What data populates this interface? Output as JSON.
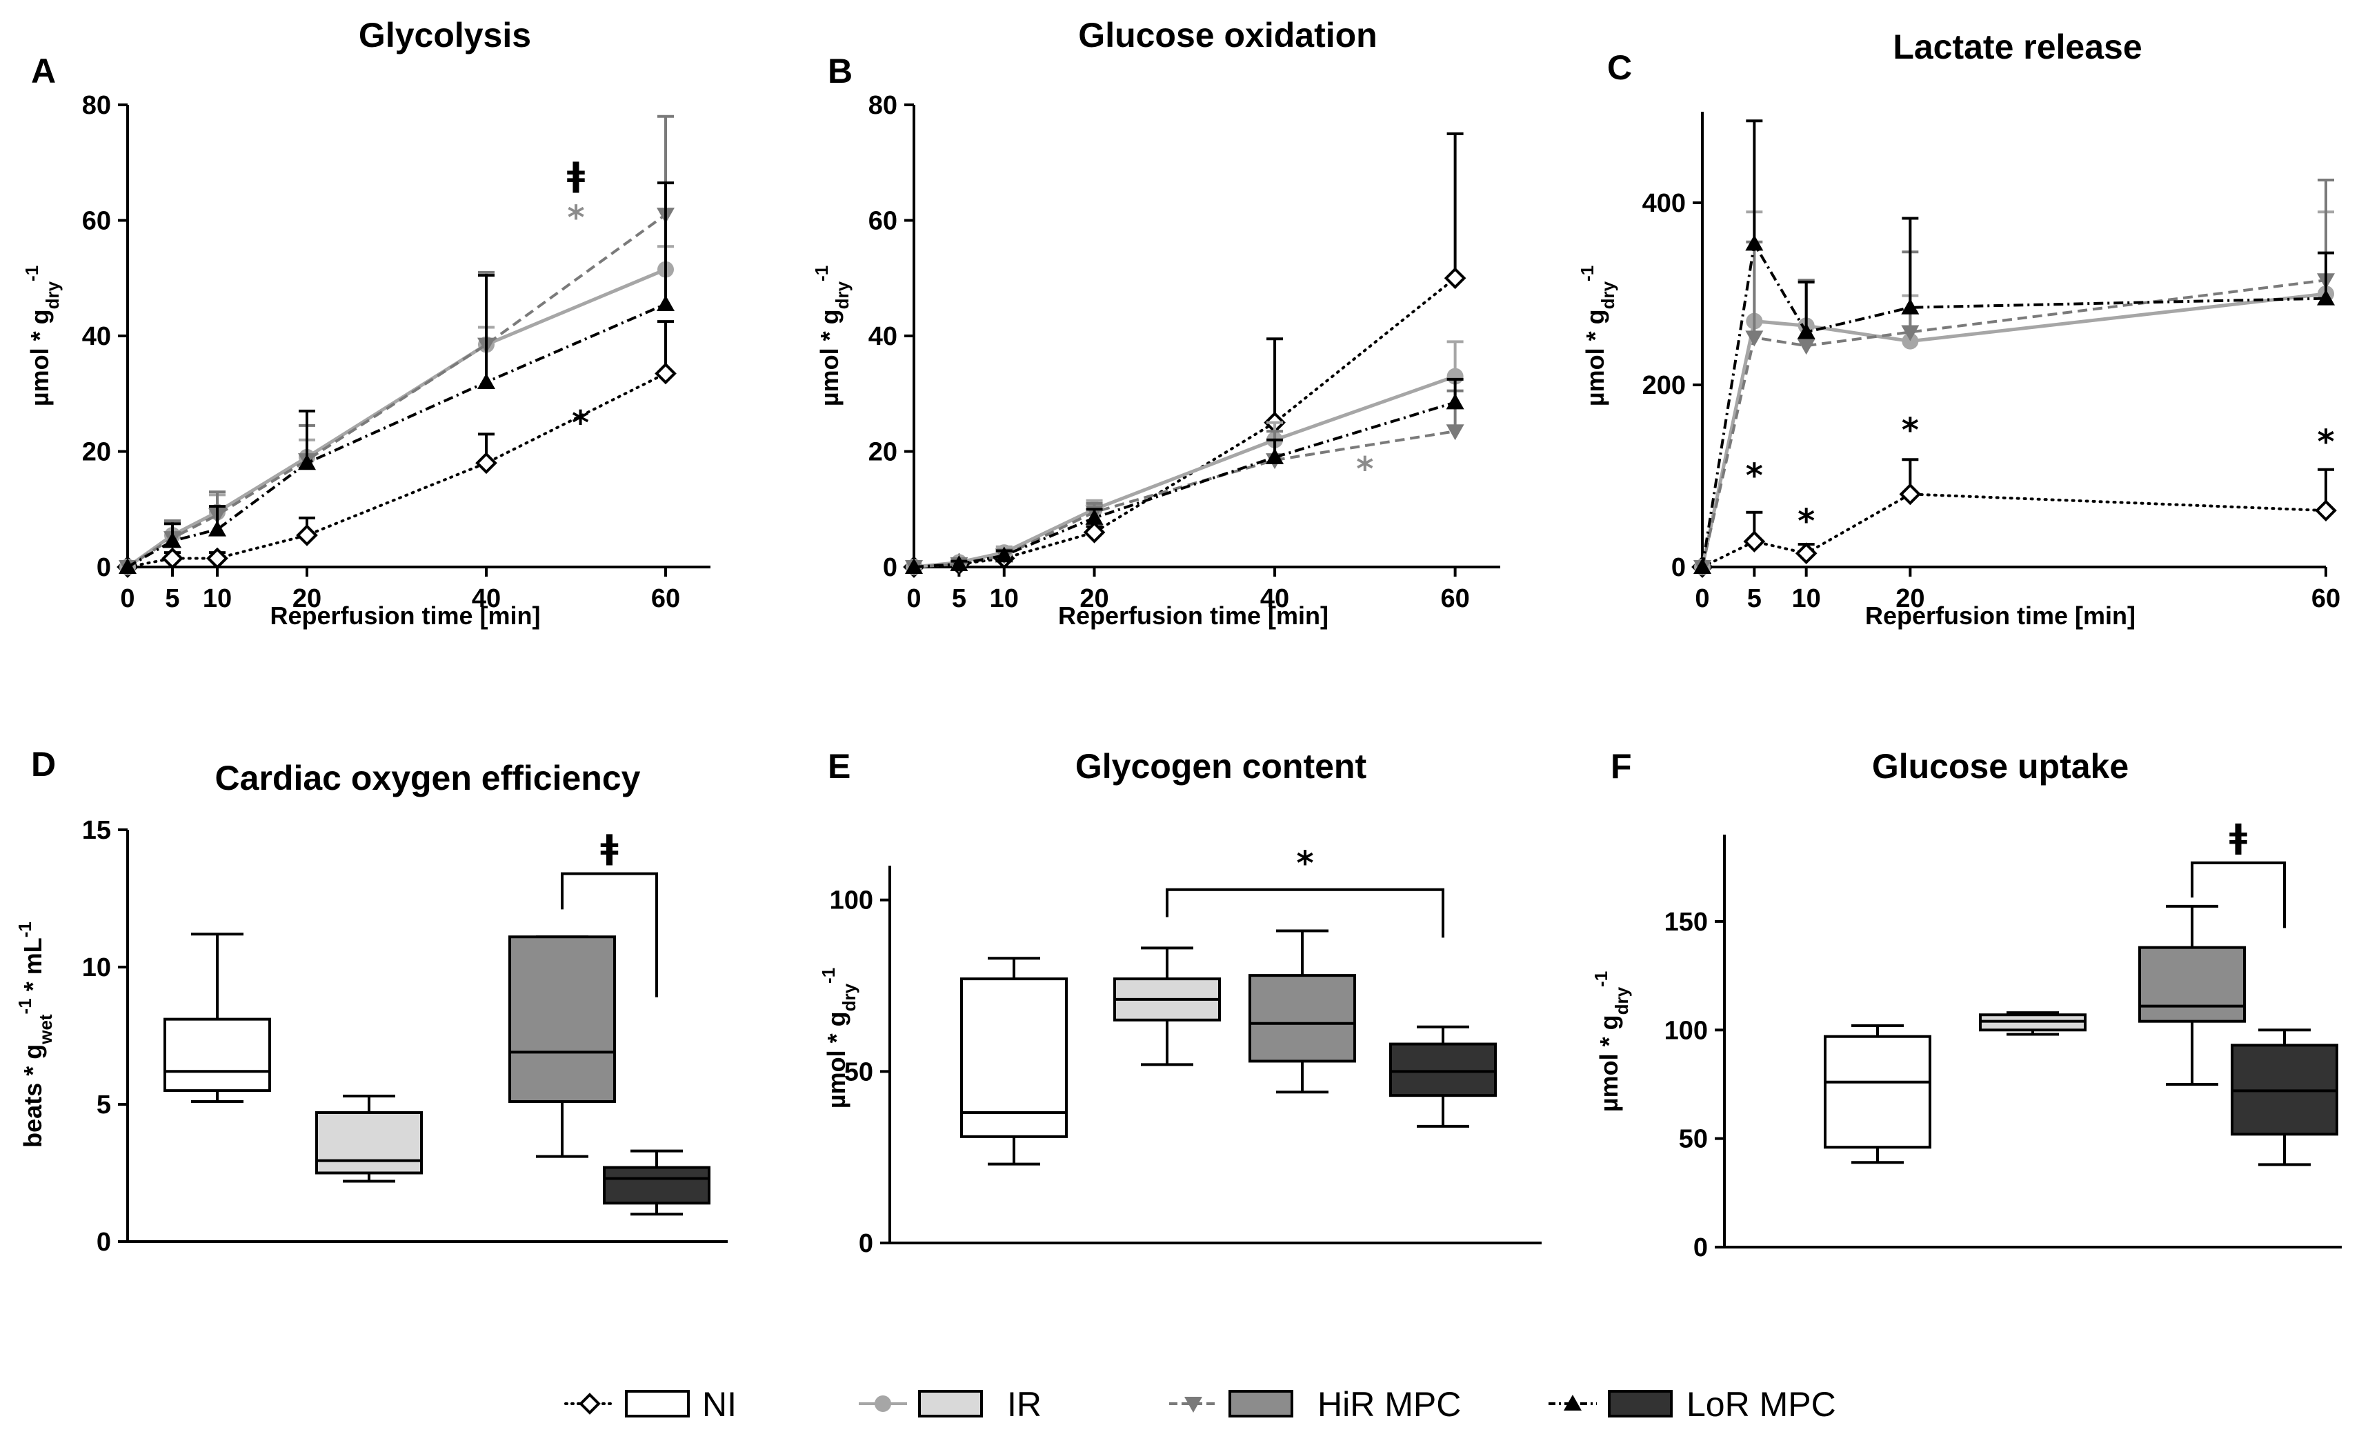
{
  "legend": [
    {
      "name": "NI",
      "color": "#000000",
      "fill": "#ffffff",
      "dash": "2,8",
      "marker": "diamond-open"
    },
    {
      "name": "IR",
      "color": "#a6a6a6",
      "fill": "#d9d9d9",
      "dash": "",
      "marker": "circle"
    },
    {
      "name": "HiR MPC",
      "color": "#7a7a7a",
      "fill": "#8c8c8c",
      "dash": "14,8",
      "marker": "triangle-down"
    },
    {
      "name": "LoR MPC",
      "color": "#000000",
      "fill": "#333333",
      "dash": "14,6,3,6",
      "marker": "triangle-up"
    }
  ],
  "chart_data": [
    {
      "id": "A",
      "type": "line",
      "title": "Glycolysis",
      "xlabel": "Reperfusion time [min]",
      "ylabel": "µmol * g_dry^-1",
      "xlim": [
        0,
        65
      ],
      "ylim": [
        0,
        80
      ],
      "xticks": [
        0,
        5,
        10,
        20,
        40,
        60
      ],
      "yticks": [
        0,
        20,
        40,
        60,
        80
      ],
      "series": [
        {
          "name": "NI",
          "x": [
            0,
            5,
            10,
            20,
            40,
            60
          ],
          "values": [
            0,
            1.5,
            1.5,
            5.5,
            18,
            33.5
          ],
          "err": [
            0,
            1,
            1,
            3,
            5,
            9
          ]
        },
        {
          "name": "IR",
          "x": [
            0,
            5,
            10,
            20,
            40,
            60
          ],
          "values": [
            0,
            5.5,
            9.5,
            19,
            38.5,
            51.5
          ],
          "err": [
            0,
            2,
            3,
            3,
            3,
            4
          ]
        },
        {
          "name": "HiR MPC",
          "x": [
            0,
            5,
            10,
            20,
            40,
            60
          ],
          "values": [
            0,
            5,
            9,
            18.5,
            38.5,
            61
          ],
          "err": [
            0,
            3,
            4,
            6,
            12.5,
            17
          ]
        },
        {
          "name": "LoR MPC",
          "x": [
            0,
            5,
            10,
            20,
            40,
            60
          ],
          "values": [
            0,
            4.5,
            6.5,
            18,
            32,
            45.5
          ],
          "err": [
            0,
            3,
            4,
            9,
            18.5,
            21
          ]
        }
      ],
      "annotations": [
        {
          "text": "ǂ",
          "x": 50,
          "y": 66,
          "color": "#000000"
        },
        {
          "text": "*",
          "x": 50,
          "y": 58.5,
          "color": "#8c8c8c"
        },
        {
          "text": "*",
          "x": 50.5,
          "y": 23,
          "color": "#000000"
        }
      ]
    },
    {
      "id": "B",
      "type": "line",
      "title": "Glucose oxidation",
      "xlabel": "Reperfusion time [min]",
      "ylabel": "µmol * g_dry^-1",
      "xlim": [
        0,
        65
      ],
      "ylim": [
        0,
        80
      ],
      "xticks": [
        0,
        5,
        10,
        20,
        40,
        60
      ],
      "yticks": [
        0,
        20,
        40,
        60,
        80
      ],
      "series": [
        {
          "name": "NI",
          "x": [
            0,
            5,
            10,
            20,
            40,
            60
          ],
          "values": [
            0,
            0.5,
            1.5,
            6,
            25,
            50
          ],
          "err": [
            0,
            0.5,
            0.5,
            1,
            14.5,
            25
          ]
        },
        {
          "name": "IR",
          "x": [
            0,
            5,
            10,
            20,
            40,
            60
          ],
          "values": [
            0,
            0.8,
            2.5,
            10,
            22,
            33
          ],
          "err": [
            0,
            0.5,
            1,
            1.5,
            3,
            6
          ]
        },
        {
          "name": "HiR MPC",
          "x": [
            0,
            5,
            10,
            20,
            40,
            60
          ],
          "values": [
            0,
            0.5,
            2,
            9.5,
            18.5,
            23.5
          ],
          "err": [
            0,
            0.5,
            0.8,
            1.5,
            5,
            7
          ]
        },
        {
          "name": "LoR MPC",
          "x": [
            0,
            5,
            10,
            20,
            40,
            60
          ],
          "values": [
            0,
            0.5,
            2,
            8.5,
            19,
            28.5
          ],
          "err": [
            0,
            0.5,
            0.8,
            1.5,
            3,
            4
          ]
        }
      ],
      "annotations": [
        {
          "text": "*",
          "x": 50,
          "y": 15,
          "color": "#8c8c8c"
        }
      ]
    },
    {
      "id": "C",
      "type": "line",
      "title": "Lactate release",
      "xlabel": "Reperfusion time [min]",
      "ylabel": "µmol * g_dry^-1",
      "xlim": [
        0,
        60
      ],
      "ylim": [
        0,
        500
      ],
      "xticks": [
        0,
        5,
        10,
        20,
        60
      ],
      "yticks": [
        0,
        200,
        400
      ],
      "series": [
        {
          "name": "NI",
          "x": [
            0,
            5,
            10,
            20,
            60
          ],
          "values": [
            0,
            28,
            15,
            80,
            62
          ],
          "err": [
            0,
            32,
            10,
            38,
            45
          ]
        },
        {
          "name": "IR",
          "x": [
            0,
            5,
            10,
            20,
            60
          ],
          "values": [
            0,
            270,
            265,
            248,
            300
          ],
          "err": [
            0,
            120,
            50,
            50,
            90
          ]
        },
        {
          "name": "HiR MPC",
          "x": [
            0,
            5,
            10,
            20,
            60
          ],
          "values": [
            0,
            252,
            243,
            258,
            315
          ],
          "err": [
            0,
            105,
            72,
            88,
            110
          ]
        },
        {
          "name": "LoR MPC",
          "x": [
            0,
            5,
            10,
            20,
            60
          ],
          "values": [
            0,
            355,
            258,
            285,
            295
          ],
          "err": [
            0,
            135,
            55,
            98,
            50
          ]
        }
      ],
      "annotations": [
        {
          "text": "*",
          "x": 5,
          "y": 88,
          "color": "#000000"
        },
        {
          "text": "*",
          "x": 10,
          "y": 38,
          "color": "#000000"
        },
        {
          "text": "*",
          "x": 20,
          "y": 138,
          "color": "#000000"
        },
        {
          "text": "*",
          "x": 60,
          "y": 125,
          "color": "#000000"
        }
      ]
    },
    {
      "id": "D",
      "type": "box",
      "title": "Cardiac oxygen efficiency",
      "ylabel": "beats * g_wet^-1 * mL^-1",
      "ylim": [
        0,
        15
      ],
      "yticks": [
        0,
        5,
        10,
        15
      ],
      "groups": [
        {
          "name": "NI",
          "min": 5.1,
          "q1": 5.5,
          "median": 6.2,
          "q3": 8.1,
          "max": 11.2
        },
        {
          "name": "IR",
          "min": 2.2,
          "q1": 2.5,
          "median": 2.95,
          "q3": 4.7,
          "max": 5.3
        },
        {
          "name": "HiR MPC",
          "min": 3.1,
          "q1": 5.1,
          "median": 6.9,
          "q3": 11.1,
          "max": 11.1
        },
        {
          "name": "LoR MPC",
          "min": 1.0,
          "q1": 1.4,
          "median": 2.3,
          "q3": 2.7,
          "max": 3.3
        }
      ],
      "brackets": [
        {
          "from": 2,
          "to": 3,
          "y": 13.4,
          "left_drop": 1.3,
          "right_drop": 4.5,
          "text": "ǂ"
        }
      ]
    },
    {
      "id": "E",
      "type": "box",
      "title": "Glycogen content",
      "ylabel": "µmol * g_dry^-1",
      "ylim": [
        0,
        110
      ],
      "yticks": [
        0,
        50,
        100
      ],
      "groups": [
        {
          "name": "NI",
          "min": 23,
          "q1": 31,
          "median": 38,
          "q3": 77,
          "max": 83
        },
        {
          "name": "IR",
          "min": 52,
          "q1": 65,
          "median": 71,
          "q3": 77,
          "max": 86
        },
        {
          "name": "HiR MPC",
          "min": 44,
          "q1": 53,
          "median": 64,
          "q3": 78,
          "max": 91
        },
        {
          "name": "LoR MPC",
          "min": 34,
          "q1": 43,
          "median": 50,
          "q3": 58,
          "max": 63
        }
      ],
      "brackets": [
        {
          "from": 1,
          "to": 3,
          "y": 103,
          "left_drop": 8,
          "right_drop": 14,
          "text": "*"
        }
      ]
    },
    {
      "id": "F",
      "type": "box",
      "title": "Glucose uptake",
      "ylabel": "µmol * g_dry^-1",
      "ylim": [
        0,
        190
      ],
      "yticks": [
        0,
        50,
        100,
        150
      ],
      "groups": [
        {
          "name": "NI",
          "min": 39,
          "q1": 46,
          "median": 76,
          "q3": 97,
          "max": 102
        },
        {
          "name": "IR",
          "min": 98,
          "q1": 100,
          "median": 104,
          "q3": 107,
          "max": 108
        },
        {
          "name": "HiR MPC",
          "min": 75,
          "q1": 104,
          "median": 111,
          "q3": 138,
          "max": 157
        },
        {
          "name": "LoR MPC",
          "min": 38,
          "q1": 52,
          "median": 72,
          "q3": 93,
          "max": 100
        }
      ],
      "brackets": [
        {
          "from": 2,
          "to": 3,
          "y": 177,
          "left_drop": 16,
          "right_drop": 30,
          "text": "ǂ"
        }
      ]
    }
  ]
}
